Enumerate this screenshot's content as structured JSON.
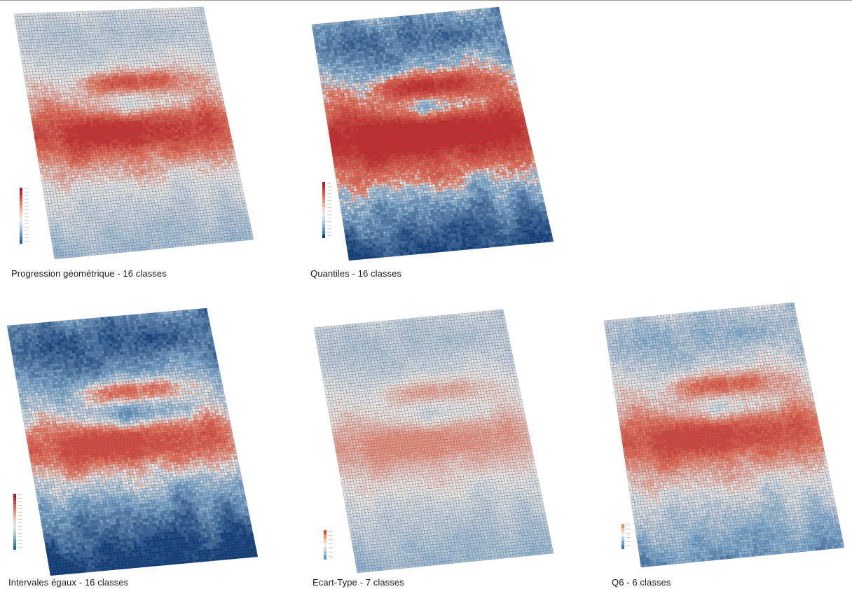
{
  "maps": [
    {
      "id": "geometric",
      "caption": "Progression géométrique - 16 classes",
      "classes": 16,
      "pattern": "geometric",
      "legend_colors": [
        "#b2182b",
        "#c62d33",
        "#d6463f",
        "#e0614f",
        "#e97b65",
        "#f1977f",
        "#f5b19c",
        "#f7cbbb",
        "#f2dcd4",
        "#dde6ee",
        "#c4d8e8",
        "#a7c6df",
        "#85b0d3",
        "#6098c5",
        "#3e7fb5",
        "#2166a6"
      ]
    },
    {
      "id": "quantiles",
      "caption": "Quantiles - 16 classes",
      "classes": 16,
      "pattern": "quantiles",
      "legend_colors": [
        "#b2182b",
        "#c62d33",
        "#d6463f",
        "#e0614f",
        "#e97b65",
        "#f1977f",
        "#f5b19c",
        "#f7cbbb",
        "#f2dcd4",
        "#dde6ee",
        "#c4d8e8",
        "#a7c6df",
        "#85b0d3",
        "#6098c5",
        "#3e7fb5",
        "#0d3f7a"
      ]
    },
    {
      "id": "equal",
      "caption": "Intervales égaux - 16 classes",
      "classes": 16,
      "pattern": "equal",
      "legend_colors": [
        "#b2182b",
        "#c62d33",
        "#d6463f",
        "#e0614f",
        "#e97b65",
        "#f1977f",
        "#f5b19c",
        "#f7cbbb",
        "#f2dcd4",
        "#dde6ee",
        "#c4d8e8",
        "#a7c6df",
        "#85b0d3",
        "#6098c5",
        "#3e7fb5",
        "#2166a6"
      ]
    },
    {
      "id": "stddev",
      "caption": "Ecart-Type - 7 classes",
      "classes": 7,
      "pattern": "stddev",
      "legend_colors": [
        "#e34a33",
        "#f4926f",
        "#f9c8b3",
        "#ececec",
        "#c7dbea",
        "#92c0de",
        "#5aa0cc"
      ]
    },
    {
      "id": "q6",
      "caption": "Q6 - 6 classes",
      "classes": 6,
      "pattern": "q6",
      "legend_colors": [
        "#ef8a62",
        "#fac0a4",
        "#ececec",
        "#b3d0e6",
        "#6ea8d1",
        "#3a7fb9"
      ]
    }
  ]
}
